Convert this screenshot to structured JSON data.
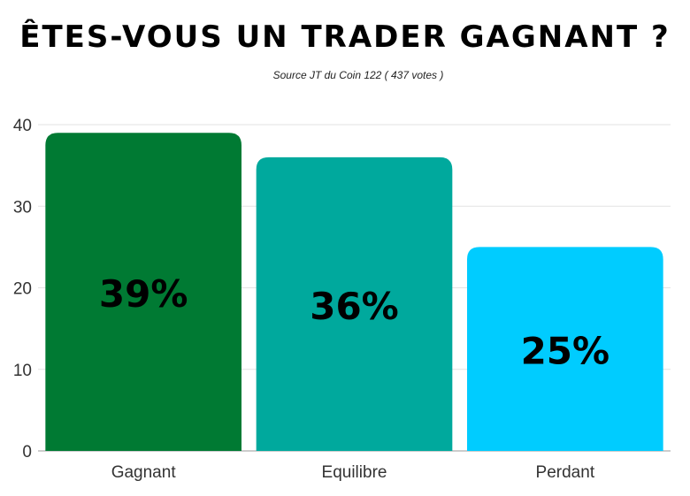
{
  "chart_data": {
    "type": "bar",
    "title": "ÊTES-VOUS UN TRADER GAGNANT ?",
    "subtitle": "Source JT du Coin 122 ( 437 votes )",
    "categories": [
      "Gagnant",
      "Equilibre",
      "Perdant"
    ],
    "values": [
      39,
      36,
      25
    ],
    "data_labels": [
      "39%",
      "36%",
      "25%"
    ],
    "colors": [
      "#007A33",
      "#00A99D",
      "#00CCFF"
    ],
    "ylim": [
      0,
      40
    ],
    "yticks": [
      "0",
      "10",
      "20",
      "30",
      "40"
    ],
    "grid": true,
    "xlabel": "",
    "ylabel": ""
  }
}
